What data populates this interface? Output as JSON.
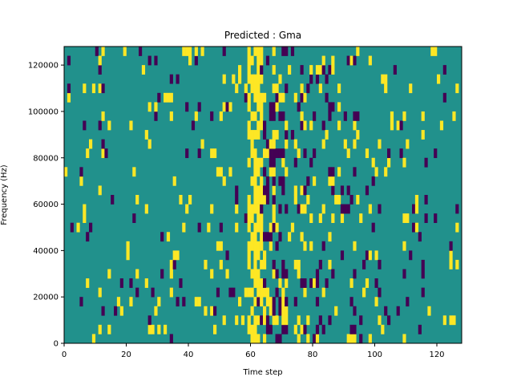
{
  "chart_data": {
    "type": "heatmap",
    "title": "Predicted : Gma",
    "xlabel": "Time step",
    "ylabel": "Frequency (Hz)",
    "xlim": [
      0,
      128
    ],
    "ylim": [
      0,
      128000
    ],
    "x_ticks": [
      0,
      20,
      40,
      60,
      80,
      100,
      120
    ],
    "y_ticks": [
      0,
      20000,
      40000,
      60000,
      80000,
      100000,
      120000
    ],
    "y_tick_labels": [
      "0",
      "20000",
      "40000",
      "60000",
      "80000",
      "100000",
      "120000"
    ],
    "rows": 32,
    "cols": 128,
    "colormap": {
      "background": "#21918c",
      "high": "#fde725",
      "low": "#440154"
    },
    "dense_region_cols": [
      59,
      71
    ],
    "background_value": 0.5
  }
}
